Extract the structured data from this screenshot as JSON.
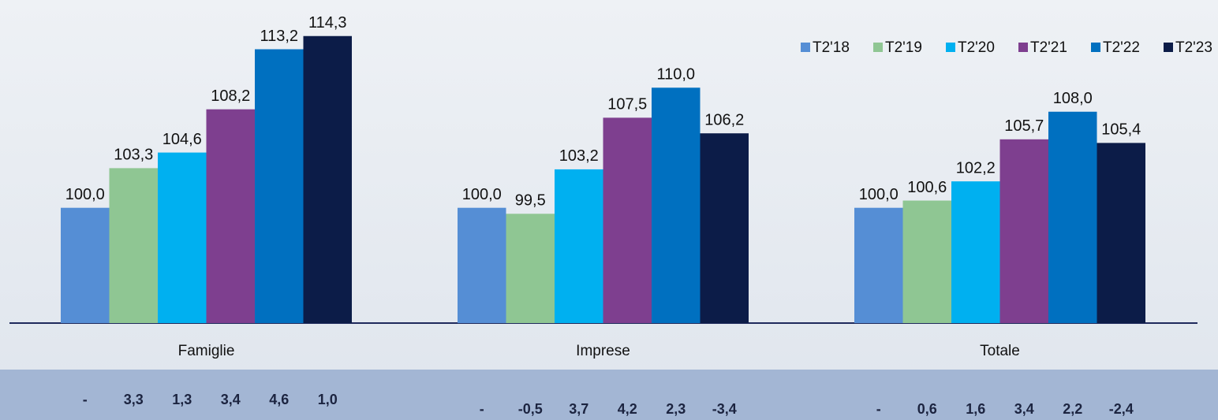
{
  "chart_data": {
    "type": "bar",
    "categories": [
      "Famiglie",
      "Imprese",
      "Totale"
    ],
    "series": [
      {
        "name": "T2'18",
        "color": "#558ed5",
        "values": [
          100.0,
          100.0,
          100.0
        ],
        "value_labels": [
          "100,0",
          "100,0",
          "100,0"
        ]
      },
      {
        "name": "T2'19",
        "color": "#8fc693",
        "values": [
          103.3,
          99.5,
          100.6
        ],
        "value_labels": [
          "103,3",
          "99,5",
          "100,6"
        ]
      },
      {
        "name": "T2'20",
        "color": "#00b0f0",
        "values": [
          104.6,
          103.2,
          102.2
        ],
        "value_labels": [
          "104,6",
          "103,2",
          "102,2"
        ]
      },
      {
        "name": "T2'21",
        "color": "#7e3f8f",
        "values": [
          108.2,
          107.5,
          105.7
        ],
        "value_labels": [
          "108,2",
          "107,5",
          "105,7"
        ]
      },
      {
        "name": "T2'22",
        "color": "#0070c0",
        "values": [
          113.2,
          110.0,
          108.0
        ],
        "value_labels": [
          "113,2",
          "110,0",
          "108,0"
        ]
      },
      {
        "name": "T2'23",
        "color": "#0c1c48",
        "values": [
          114.3,
          106.2,
          105.4
        ],
        "value_labels": [
          "114,3",
          "106,2",
          "105,4"
        ]
      }
    ],
    "ylim": [
      90.4,
      117
    ],
    "legend": "top-right"
  },
  "table": {
    "rows": [
      [
        "-",
        "3,3",
        "1,3",
        "3,4",
        "4,6",
        "1,0"
      ],
      [
        "-",
        "-0,5",
        "3,7",
        "4,2",
        "2,3",
        "-3,4"
      ],
      [
        "-",
        "0,6",
        "1,6",
        "3,4",
        "2,2",
        "-2,4"
      ]
    ]
  }
}
